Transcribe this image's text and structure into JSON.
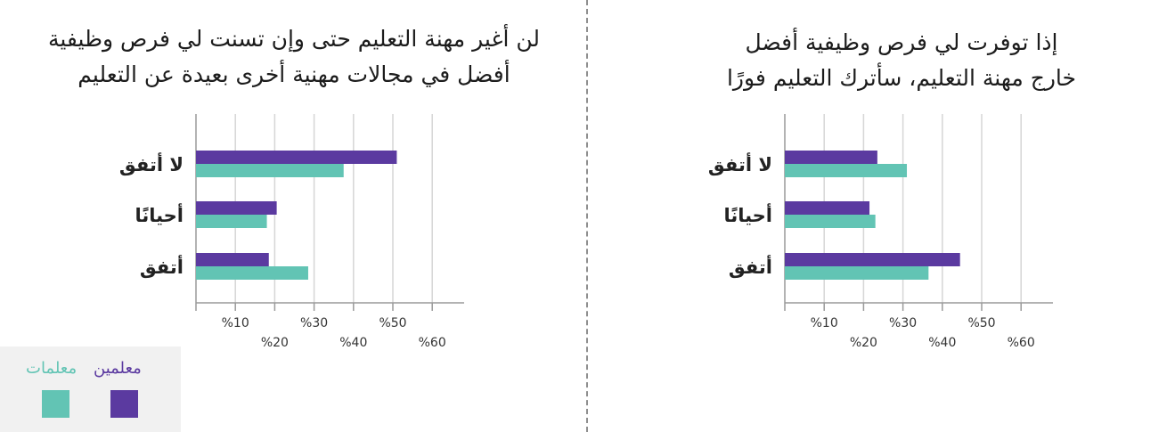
{
  "colors": {
    "men": "#5b3aa0",
    "women": "#62c4b4",
    "grid": "#d6d6d6",
    "axis": "#9a9a9a",
    "divider": "#8f8f8f"
  },
  "legend": {
    "men_label": "معلمين",
    "women_label": "معلمات"
  },
  "chart_data": [
    {
      "type": "bar",
      "title_lines": [
        "لن أغير مهنة التعليم حتى وإن تسنت لي فرص وظيفية",
        "أفضل في مجالات مهنية أخرى بعيدة عن التعليم"
      ],
      "categories": [
        "لا أتفق",
        "أحيانًا",
        "أتفق"
      ],
      "series": [
        {
          "name": "معلمين",
          "values": [
            51,
            20.5,
            18.5
          ]
        },
        {
          "name": "معلمات",
          "values": [
            37.5,
            18,
            28.5
          ]
        }
      ],
      "xlim": [
        0,
        60
      ],
      "ticks": [
        "%10",
        "%20",
        "%30",
        "%40",
        "%50",
        "%60"
      ],
      "grid": true,
      "orientation": "horizontal"
    },
    {
      "type": "bar",
      "title_lines": [
        "إذا توفرت لي فرص وظيفية أفضل",
        "خارج مهنة التعليم، سأترك التعليم فورًا"
      ],
      "categories": [
        "لا أتفق",
        "أحيانًا",
        "أتفق"
      ],
      "series": [
        {
          "name": "معلمين",
          "values": [
            23.5,
            21.5,
            44.5
          ]
        },
        {
          "name": "معلمات",
          "values": [
            31,
            23,
            36.5
          ]
        }
      ],
      "xlim": [
        0,
        60
      ],
      "ticks": [
        "%10",
        "%20",
        "%30",
        "%40",
        "%50",
        "%60"
      ],
      "grid": true,
      "orientation": "horizontal"
    }
  ]
}
